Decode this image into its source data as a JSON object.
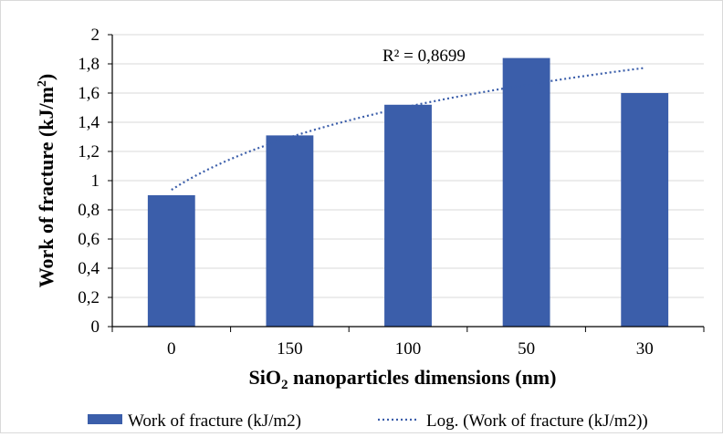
{
  "chart_data": {
    "type": "bar",
    "categories": [
      "0",
      "150",
      "100",
      "50",
      "30"
    ],
    "series": [
      {
        "name": "Work of fracture (kJ/m2)",
        "values": [
          0.9,
          1.31,
          1.52,
          1.84,
          1.6
        ],
        "color": "#3B5EAA"
      }
    ],
    "trendline": {
      "name": "Log. (Work of fracture (kJ/m2))",
      "type": "logarithmic",
      "color": "#3B5EAA",
      "style": "dotted",
      "r_squared_label": "R² = 0,8699"
    },
    "xlabel_parts": [
      "SiO",
      "2",
      " nanoparticles dimensions (nm)"
    ],
    "ylabel_parts": [
      "Work of fracture (kJ/m",
      "2",
      ")"
    ],
    "ylim": [
      0,
      2
    ],
    "yticks": [
      "0",
      "0,2",
      "0,4",
      "0,6",
      "0,8",
      "1",
      "1,2",
      "1,4",
      "1,6",
      "1,8",
      "2"
    ],
    "grid": true,
    "legend_position": "bottom"
  }
}
